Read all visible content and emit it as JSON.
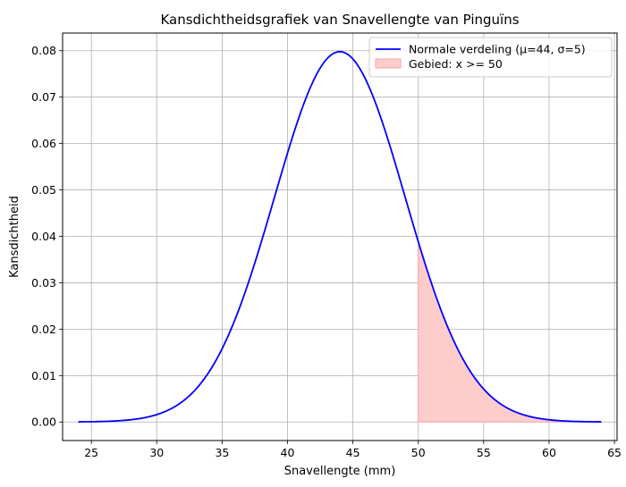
{
  "chart_data": {
    "type": "line",
    "title": "Kansdichtheidsgrafiek van Snavellengte van Pinguïns",
    "xlabel": "Snavellengte (mm)",
    "ylabel": "Kansdichtheid",
    "xlim": [
      22.8,
      65.2
    ],
    "ylim": [
      -0.004,
      0.0838
    ],
    "x_ticks": [
      25,
      30,
      35,
      40,
      45,
      50,
      55,
      60,
      65
    ],
    "y_ticks": [
      0.0,
      0.01,
      0.02,
      0.03,
      0.04,
      0.05,
      0.06,
      0.07,
      0.08
    ],
    "y_tick_labels": [
      "0.00",
      "0.01",
      "0.02",
      "0.03",
      "0.04",
      "0.05",
      "0.06",
      "0.07",
      "0.08"
    ],
    "grid": true,
    "legend_position": "top-right",
    "series": [
      {
        "name": "Normale verdeling (μ=44, σ=5)",
        "kind": "line",
        "color": "#0000ff",
        "mu": 44,
        "sigma": 5,
        "x_range": [
          24,
          64
        ],
        "x": [
          24,
          26,
          28,
          30,
          32,
          34,
          36,
          38,
          40,
          42,
          44,
          46,
          48,
          50,
          52,
          54,
          56,
          58,
          60,
          62,
          64
        ],
        "y": [
          0.0,
          0.0002,
          0.0005,
          0.0016,
          0.0045,
          0.0108,
          0.0222,
          0.0388,
          0.0579,
          0.0737,
          0.0798,
          0.0737,
          0.0579,
          0.0388,
          0.0222,
          0.0108,
          0.0045,
          0.0016,
          0.0005,
          0.0002,
          0.0
        ]
      },
      {
        "name": "Gebied: x >= 50",
        "kind": "area",
        "color": "#ffcccc",
        "edge_color": "#f4a6a6",
        "x_range": [
          50,
          64
        ]
      }
    ]
  }
}
